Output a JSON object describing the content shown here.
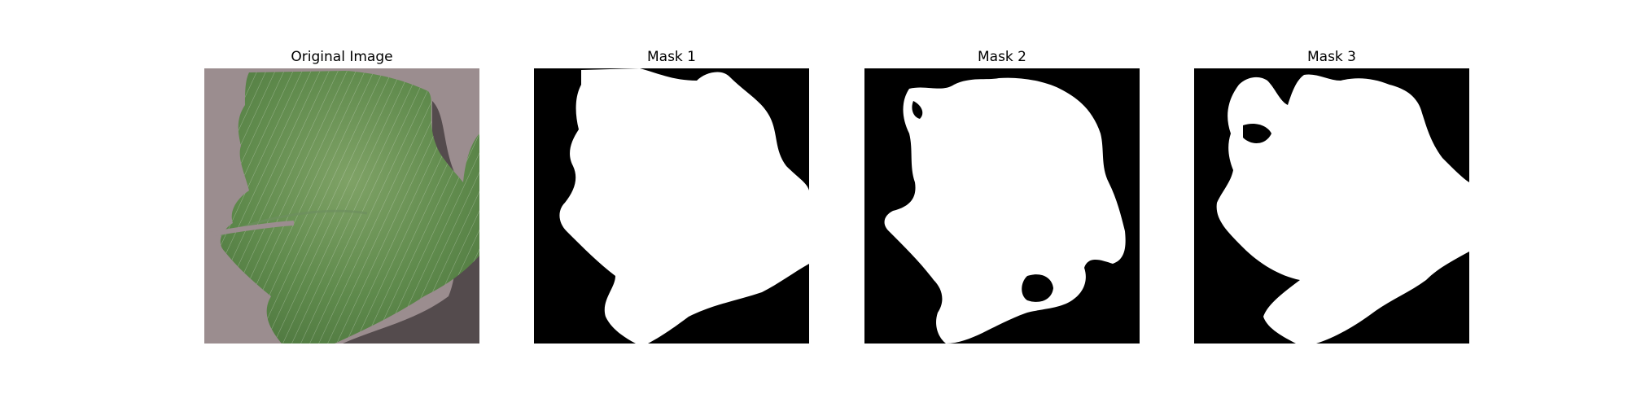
{
  "panels": [
    {
      "title": "Original Image"
    },
    {
      "title": "Mask 1"
    },
    {
      "title": "Mask 2"
    },
    {
      "title": "Mask 3"
    }
  ],
  "colors": {
    "background_gray": "#9b8d8f",
    "leaf_green": "#5f8a4c",
    "leaf_light": "#d8e2d0",
    "shadow": "#4c4446",
    "mask_foreground": "#ffffff",
    "mask_background": "#000000"
  }
}
